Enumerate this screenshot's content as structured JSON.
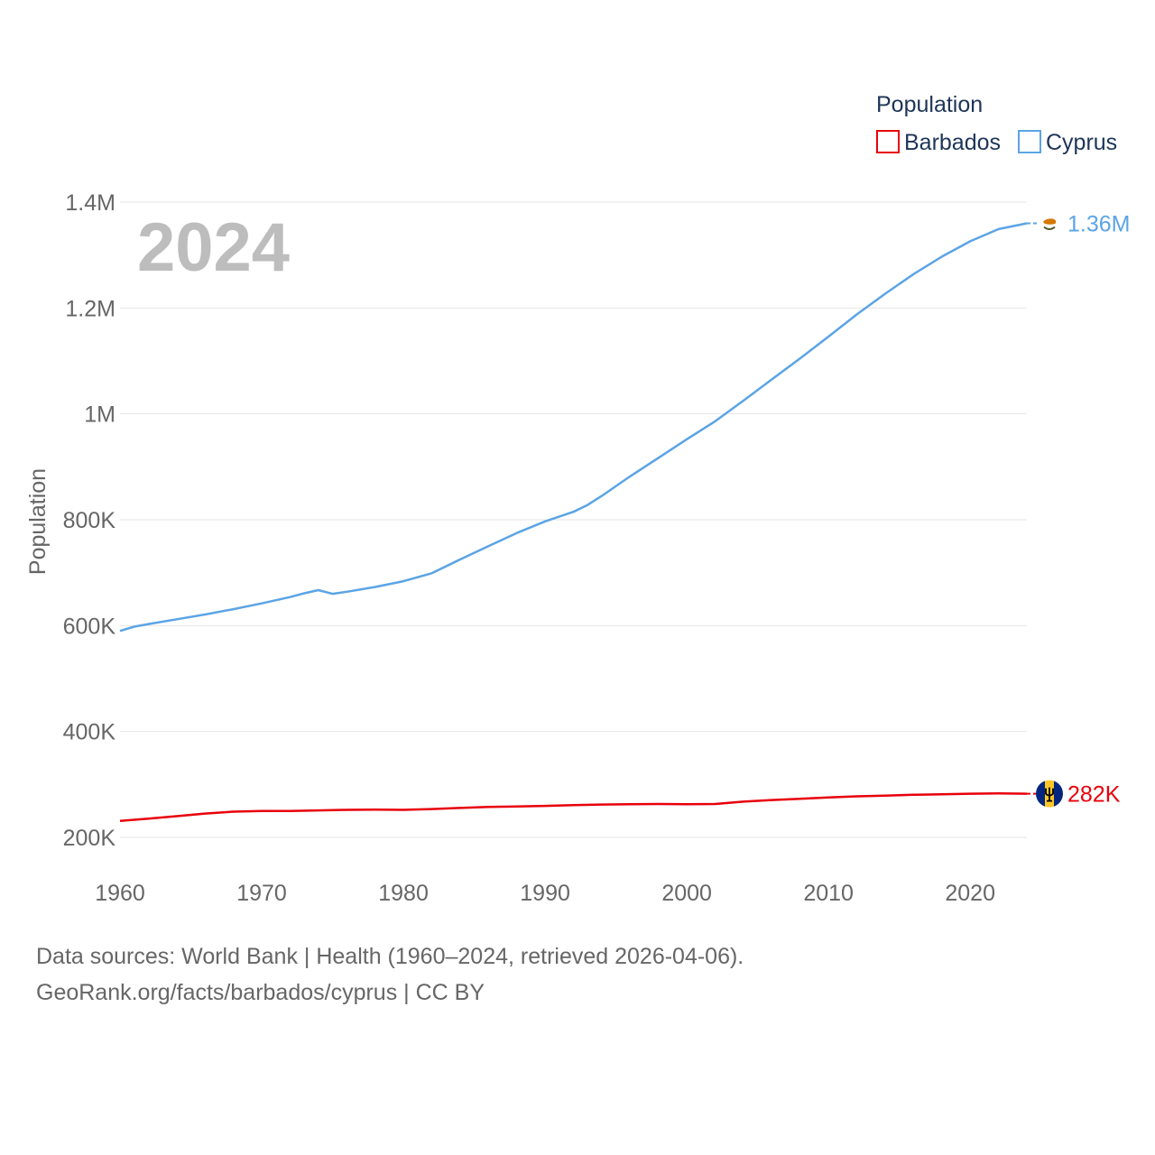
{
  "chart_data": {
    "type": "line",
    "ylabel": "Population",
    "ylim": [
      200000,
      1400000
    ],
    "yticks": [
      {
        "value": 200000,
        "label": "200K"
      },
      {
        "value": 400000,
        "label": "400K"
      },
      {
        "value": 600000,
        "label": "600K"
      },
      {
        "value": 800000,
        "label": "800K"
      },
      {
        "value": 1000000,
        "label": "1M"
      },
      {
        "value": 1200000,
        "label": "1.2M"
      },
      {
        "value": 1400000,
        "label": "1.4M"
      }
    ],
    "xlim": [
      1960,
      2024
    ],
    "xticks": [
      1960,
      1970,
      1980,
      1990,
      2000,
      2010,
      2020
    ],
    "year_label": "2024",
    "legend": {
      "title": "Population",
      "position": "top-right"
    },
    "series": [
      {
        "name": "Barbados",
        "color": "#e8000b",
        "end_label": "282K",
        "flag": "barbados-flag",
        "x": [
          1960,
          1962,
          1964,
          1966,
          1968,
          1970,
          1972,
          1974,
          1976,
          1978,
          1980,
          1982,
          1984,
          1986,
          1988,
          1990,
          1992,
          1994,
          1996,
          1998,
          2000,
          2002,
          2004,
          2006,
          2008,
          2010,
          2012,
          2014,
          2016,
          2018,
          2020,
          2022,
          2024
        ],
        "values": [
          231000,
          235500,
          240000,
          245000,
          248500,
          250000,
          249800,
          251000,
          252000,
          252500,
          252000,
          253500,
          255500,
          257500,
          258500,
          259500,
          261000,
          262000,
          262500,
          263000,
          262500,
          263000,
          267500,
          270500,
          273000,
          275500,
          277500,
          279000,
          280500,
          281500,
          282500,
          283000,
          282500
        ]
      },
      {
        "name": "Cyprus",
        "color": "#5ba4e5",
        "end_label": "1.36M",
        "flag": "cyprus-flag",
        "x": [
          1960,
          1961,
          1962,
          1964,
          1966,
          1968,
          1970,
          1972,
          1973,
          1974,
          1975,
          1976,
          1978,
          1980,
          1982,
          1984,
          1986,
          1988,
          1990,
          1992,
          1993,
          1994,
          1996,
          1998,
          2000,
          2002,
          2004,
          2006,
          2008,
          2010,
          2012,
          2014,
          2016,
          2018,
          2020,
          2022,
          2024
        ],
        "values": [
          590000,
          598000,
          603000,
          612000,
          621000,
          631000,
          642000,
          654000,
          661000,
          667000,
          660000,
          664000,
          673000,
          684000,
          699000,
          725000,
          750000,
          775000,
          797000,
          815000,
          828000,
          845000,
          882000,
          917000,
          952000,
          986000,
          1025000,
          1065000,
          1105000,
          1146000,
          1188000,
          1227000,
          1264000,
          1297000,
          1326000,
          1349000,
          1360000
        ]
      }
    ]
  },
  "footer": {
    "sources": "Data sources: World Bank | Health (1960–2024, retrieved 2026-04-06).",
    "credit": "GeoRank.org/facts/barbados/cyprus | CC BY"
  }
}
